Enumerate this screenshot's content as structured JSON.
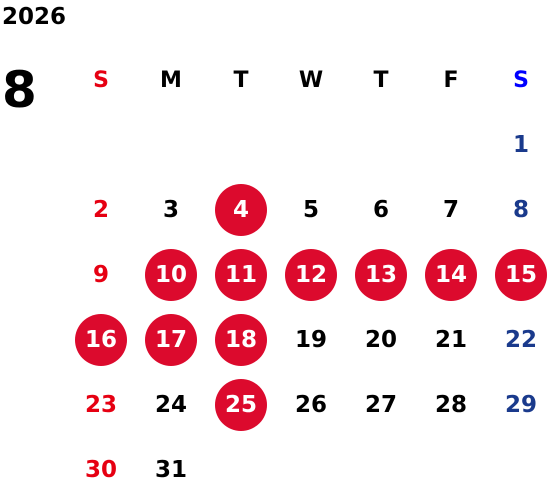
{
  "calendar": {
    "year": "2026",
    "month": "8",
    "weekdays": [
      "S",
      "M",
      "T",
      "W",
      "T",
      "F",
      "S"
    ],
    "first_weekday_index": 6,
    "days": [
      "1",
      "2",
      "3",
      "4",
      "5",
      "6",
      "7",
      "8",
      "9",
      "10",
      "11",
      "12",
      "13",
      "14",
      "15",
      "16",
      "17",
      "18",
      "19",
      "20",
      "21",
      "22",
      "23",
      "24",
      "25",
      "26",
      "27",
      "28",
      "29",
      "30",
      "31"
    ],
    "highlighted_days": [
      "4",
      "10",
      "11",
      "12",
      "13",
      "14",
      "15",
      "16",
      "17",
      "18",
      "25"
    ]
  },
  "colors": {
    "sunday": "#e60012",
    "saturday_header": "#0000ff",
    "saturday_day": "#1a3a8c",
    "highlight": "#dc0a2d"
  }
}
